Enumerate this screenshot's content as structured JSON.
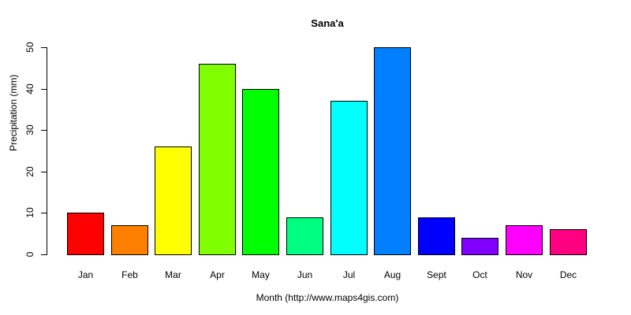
{
  "chart_data": {
    "type": "bar",
    "title": "Sana'a",
    "xlabel": "Month (http://www.maps4gis.com)",
    "ylabel": "Precipitation (mm)",
    "categories": [
      "Jan",
      "Feb",
      "Mar",
      "Apr",
      "May",
      "Jun",
      "Jul",
      "Aug",
      "Sept",
      "Oct",
      "Nov",
      "Dec"
    ],
    "values": [
      10,
      7,
      26,
      46,
      40,
      9,
      37,
      50,
      9,
      4,
      7,
      6
    ],
    "colors": [
      "#FF0000",
      "#FF8000",
      "#FFFF00",
      "#80FF00",
      "#00FF00",
      "#00FF80",
      "#00FFFF",
      "#0080FF",
      "#0000FF",
      "#8000FF",
      "#FF00FF",
      "#FF0080"
    ],
    "ylim": [
      0,
      50
    ],
    "yticks": [
      0,
      10,
      20,
      30,
      40,
      50
    ],
    "grid": false,
    "legend": null
  }
}
